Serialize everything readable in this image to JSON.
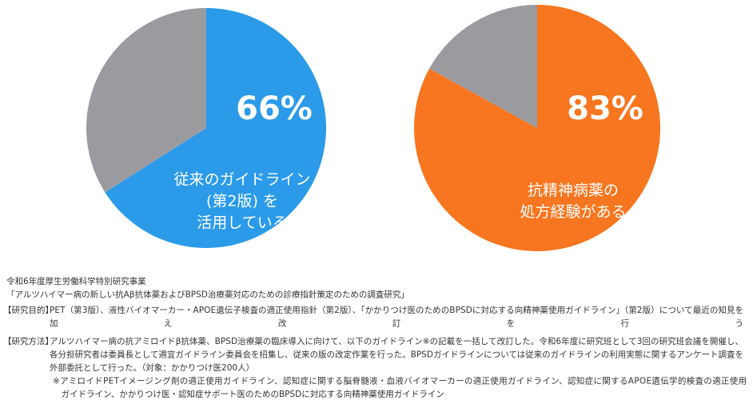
{
  "chart_data": [
    {
      "type": "pie",
      "values": [
        66,
        34
      ],
      "value_labels": [
        "66%",
        null
      ],
      "colors": [
        "#2b9be9",
        "#9b9b9f"
      ],
      "annotation": [
        "従来のガイドライン",
        "(第2版) を",
        "活用している"
      ]
    },
    {
      "type": "pie",
      "values": [
        83,
        17
      ],
      "value_labels": [
        "83%",
        null
      ],
      "colors": [
        "#f7761f",
        "#9b9b9f"
      ],
      "annotation": [
        "抗精神病薬の",
        "処方経験がある"
      ]
    }
  ],
  "footer": {
    "heading": [
      "令和6年度厚生労働科学特別研究事業",
      "「アルツハイマー病の新しい抗Aβ抗体薬およびBPSD治療薬対応のための診療指針策定のための調査研究」"
    ],
    "items": [
      {
        "label": "【研究目的】",
        "lines": [
          "PET（第3版）、液性バイオマーカー・APOE遺伝子検査の適正使用指針（第2版）、「かかりつけ医のためのBPSDに対応する向精神薬使用ガイドライン」（第2版）について最近の知見を",
          "加え改訂を行う"
        ]
      },
      {
        "label": "【研究方法】",
        "lines": [
          "アルツハイマー病の抗アミロイドβ抗体薬、BPSD治療薬の臨床導入に向けて、以下のガイドライン※の記載を一括して改訂した。令和6年度に研究班として3回の研究班会議を開催し、",
          "各分担研究者は委員長として適宜ガイドライン委員会を招集し、従来の版の改定作業を行った。BPSDガイドラインについては従来のガイドラインの利用実態に関するアンケート調査を",
          "外部委託として行った。（対象：かかりつけ医200人）",
          "※アミロイドPETイメージング剤の適正使用ガイドライン、認知症に関する脳脊髄液・血液バイオマーカーの適正使用ガイドライン、認知症に関するAPOE遺伝学的検査の適正使用",
          "　ガイドライン、かかりつけ医・認知症サポート医のためのBPSDに対応する向精神薬使用ガイドライン"
        ]
      }
    ]
  }
}
